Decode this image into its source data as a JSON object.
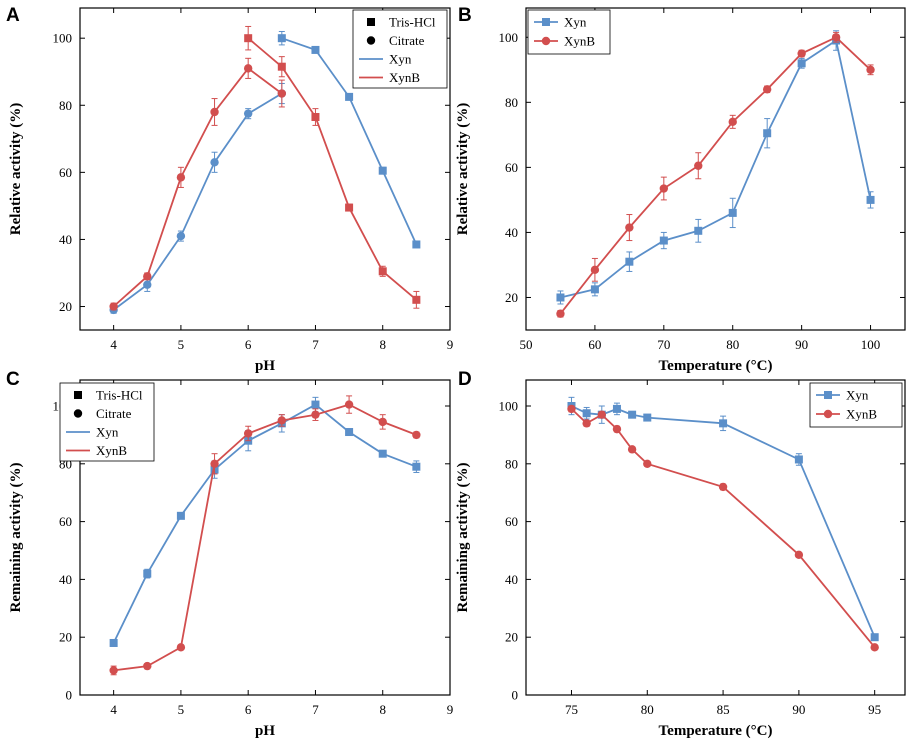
{
  "colors": {
    "xyn": "#5b8fc9",
    "xynb": "#d24e4e",
    "axis": "#000000",
    "frame": "#000000"
  },
  "chart_data": [
    {
      "panel": "A",
      "type": "line",
      "xlabel": "pH",
      "ylabel": "Relative activity (%)",
      "xlim": [
        3.5,
        9
      ],
      "ylim": [
        13,
        109
      ],
      "xticks": [
        4,
        5,
        6,
        7,
        8,
        9
      ],
      "yticks": [
        20,
        40,
        60,
        80,
        100
      ],
      "legend": {
        "position": "top-right",
        "entries": [
          {
            "label": "Tris-HCl",
            "marker": "square",
            "color": "#000000"
          },
          {
            "label": "Citrate",
            "marker": "circle",
            "color": "#000000"
          },
          {
            "label": "Xyn",
            "marker": "line",
            "color": "#5b8fc9"
          },
          {
            "label": "XynB",
            "marker": "line",
            "color": "#d24e4e"
          }
        ]
      },
      "series": [
        {
          "name": "Xyn citrate",
          "color": "#5b8fc9",
          "marker": "circle",
          "x": [
            4,
            4.5,
            5,
            5.5,
            6,
            6.5
          ],
          "y": [
            19,
            26.5,
            41,
            63,
            77.5,
            83.5
          ],
          "err": [
            1,
            2,
            1.5,
            3,
            1.5,
            3
          ]
        },
        {
          "name": "Xyn Tris-HCl",
          "color": "#5b8fc9",
          "marker": "square",
          "x": [
            6.5,
            7,
            7.5,
            8,
            8.5
          ],
          "y": [
            100,
            96.5,
            82.5,
            60.5,
            38.5
          ],
          "err": [
            2,
            0.8,
            0.8,
            1,
            0.8
          ]
        },
        {
          "name": "XynB citrate",
          "color": "#d24e4e",
          "marker": "circle",
          "x": [
            4,
            4.5,
            5,
            5.5,
            6,
            6.5
          ],
          "y": [
            20,
            29,
            58.5,
            78,
            91,
            83.5
          ],
          "err": [
            1,
            1,
            3,
            4,
            3,
            4
          ]
        },
        {
          "name": "XynB Tris-HCl",
          "color": "#d24e4e",
          "marker": "square",
          "x": [
            6,
            6.5,
            7,
            7.5,
            8,
            8.5
          ],
          "y": [
            100,
            91.5,
            76.5,
            49.5,
            30.5,
            22
          ],
          "err": [
            3.5,
            3,
            2.5,
            1,
            1.5,
            2.5
          ]
        }
      ]
    },
    {
      "panel": "B",
      "type": "line",
      "xlabel": "Temperature (°C)",
      "ylabel": "Relative activity (%)",
      "xlim": [
        50,
        105
      ],
      "ylim": [
        10,
        109
      ],
      "xticks": [
        50,
        60,
        70,
        80,
        90,
        100
      ],
      "yticks": [
        20,
        40,
        60,
        80,
        100
      ],
      "legend": {
        "position": "top-left",
        "entries": [
          {
            "label": "Xyn",
            "marker": "square",
            "color": "#5b8fc9"
          },
          {
            "label": "XynB",
            "marker": "circle",
            "color": "#d24e4e"
          }
        ]
      },
      "series": [
        {
          "name": "Xyn",
          "color": "#5b8fc9",
          "marker": "square",
          "x": [
            55,
            60,
            65,
            70,
            75,
            80,
            85,
            90,
            95,
            100
          ],
          "y": [
            20,
            22.5,
            31,
            37.5,
            40.5,
            46,
            70.5,
            92,
            99,
            50
          ],
          "err": [
            2,
            2,
            3,
            2.5,
            3.5,
            4.5,
            4.5,
            1.5,
            3,
            2.5
          ]
        },
        {
          "name": "XynB",
          "color": "#d24e4e",
          "marker": "circle",
          "x": [
            55,
            60,
            65,
            70,
            75,
            80,
            85,
            90,
            95,
            100
          ],
          "y": [
            15,
            28.5,
            41.5,
            53.5,
            60.5,
            74,
            84,
            95,
            100,
            90
          ],
          "err": [
            1,
            3.5,
            4,
            3.5,
            4,
            2,
            1,
            1,
            1.5,
            1.5
          ]
        }
      ]
    },
    {
      "panel": "C",
      "type": "line",
      "xlabel": "pH",
      "ylabel": "Remaining activity (%)",
      "xlim": [
        3.5,
        9
      ],
      "ylim": [
        0,
        109
      ],
      "xticks": [
        4,
        5,
        6,
        7,
        8,
        9
      ],
      "yticks": [
        0,
        20,
        40,
        60,
        80,
        100
      ],
      "legend": {
        "position": "top-left",
        "entries": [
          {
            "label": "Tris-HCl",
            "marker": "square",
            "color": "#000000"
          },
          {
            "label": "Citrate",
            "marker": "circle",
            "color": "#000000"
          },
          {
            "label": "Xyn",
            "marker": "line",
            "color": "#5b8fc9"
          },
          {
            "label": "XynB",
            "marker": "line",
            "color": "#d24e4e"
          }
        ]
      },
      "series": [
        {
          "name": "Xyn",
          "color": "#5b8fc9",
          "marker": "square",
          "x": [
            4,
            4.5,
            5,
            5.5,
            6,
            6.5,
            7,
            7.5,
            8,
            8.5
          ],
          "y": [
            18,
            42,
            62,
            78,
            88,
            94,
            100.5,
            91,
            83.5,
            79
          ],
          "err": [
            0.5,
            1.5,
            1,
            3,
            3.5,
            3,
            2.5,
            1,
            1,
            2
          ]
        },
        {
          "name": "XynB",
          "color": "#d24e4e",
          "marker": "circle",
          "x": [
            4,
            4.5,
            5,
            5.5,
            6,
            6.5,
            7,
            7.5,
            8,
            8.5
          ],
          "y": [
            8.5,
            10,
            16.5,
            80,
            90.5,
            95,
            97,
            100.5,
            94.5,
            90
          ],
          "err": [
            1.5,
            0.5,
            0.5,
            3.5,
            2.5,
            2,
            2,
            3,
            2.5,
            1
          ]
        }
      ]
    },
    {
      "panel": "D",
      "type": "line",
      "xlabel": "Temperature (°C)",
      "ylabel": "Remaining activity (%)",
      "xlim": [
        72,
        97
      ],
      "ylim": [
        0,
        109
      ],
      "xticks": [
        75,
        80,
        85,
        90,
        95
      ],
      "yticks": [
        0,
        20,
        40,
        60,
        80,
        100
      ],
      "legend": {
        "position": "top-right",
        "entries": [
          {
            "label": "Xyn",
            "marker": "square",
            "color": "#5b8fc9"
          },
          {
            "label": "XynB",
            "marker": "circle",
            "color": "#d24e4e"
          }
        ]
      },
      "series": [
        {
          "name": "Xyn",
          "color": "#5b8fc9",
          "marker": "square",
          "x": [
            75,
            76,
            77,
            78,
            79,
            80,
            85,
            90,
            95
          ],
          "y": [
            100,
            97.5,
            97,
            99,
            97,
            96,
            94,
            81.5,
            20
          ],
          "err": [
            3,
            2,
            3,
            2,
            1,
            1,
            2.5,
            2,
            1
          ]
        },
        {
          "name": "XynB",
          "color": "#d24e4e",
          "marker": "circle",
          "x": [
            75,
            76,
            77,
            78,
            79,
            80,
            85,
            90,
            95
          ],
          "y": [
            99,
            94,
            97,
            92,
            85,
            80,
            72,
            48.5,
            16.5
          ],
          "err": [
            1,
            1,
            1,
            1,
            0.5,
            0.5,
            1,
            0.5,
            0.5
          ]
        }
      ]
    }
  ]
}
